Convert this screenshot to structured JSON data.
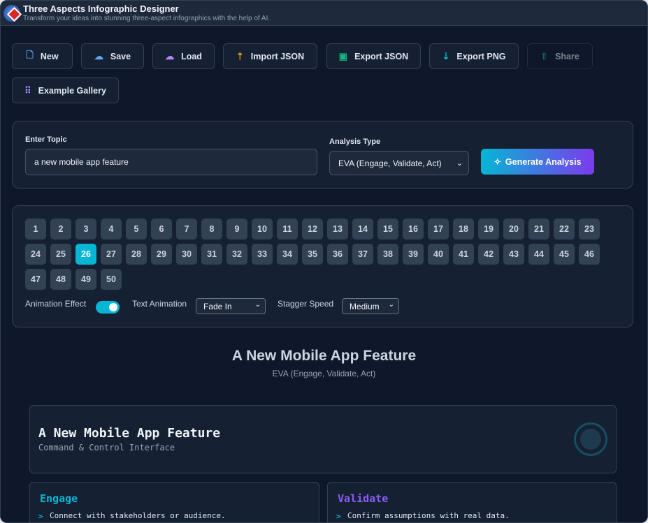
{
  "app": {
    "title": "Three Aspects Infographic Designer",
    "subtitle": "Transform your ideas into stunning three-aspect infographics with the help of AI."
  },
  "toolbar": [
    {
      "label": "New",
      "icon": "file-plus-icon",
      "color": "#60a5fa"
    },
    {
      "label": "Save",
      "icon": "cloud-upload-icon",
      "color": "#60a5fa"
    },
    {
      "label": "Load",
      "icon": "cloud-download-icon",
      "color": "#c084fc"
    },
    {
      "label": "Import JSON",
      "icon": "upload-icon",
      "color": "#f59e0b"
    },
    {
      "label": "Export JSON",
      "icon": "save-icon",
      "color": "#10b981"
    },
    {
      "label": "Export PNG",
      "icon": "download-icon",
      "color": "#06b6d4"
    },
    {
      "label": "Share",
      "icon": "share-icon",
      "color": "#10b981"
    },
    {
      "label": "Example Gallery",
      "icon": "grid-icon",
      "color": "#a78bfa"
    }
  ],
  "form": {
    "topic_label": "Enter Topic",
    "topic_value": "a new mobile app feature",
    "analysis_label": "Analysis Type",
    "analysis_value": "EVA (Engage, Validate, Act)",
    "generate_label": "Generate Analysis"
  },
  "styles": {
    "selected": 26,
    "count": 50
  },
  "controls": {
    "animation_label": "Animation Effect",
    "animation_on": true,
    "text_anim_label": "Text Animation",
    "text_anim_value": "Fade In",
    "stagger_label": "Stagger Speed",
    "stagger_value": "Medium"
  },
  "preview": {
    "title": "A New Mobile App Feature",
    "subtitle": "EVA (Engage, Validate, Act)",
    "header_title": "A New Mobile App Feature",
    "header_sub": "Command & Control Interface",
    "aspects": [
      {
        "title": "Engage",
        "color": "#06b6d4",
        "item": "Connect with stakeholders or audience."
      },
      {
        "title": "Validate",
        "color": "#8b5cf6",
        "item": "Confirm assumptions with real data."
      }
    ]
  }
}
